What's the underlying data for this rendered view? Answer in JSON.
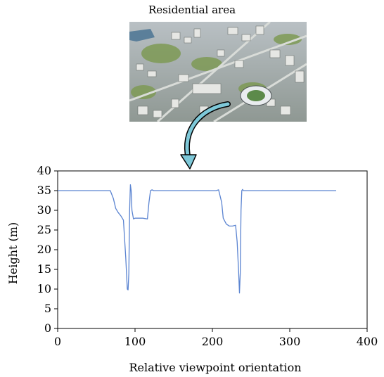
{
  "figure": {
    "title": "Residential area",
    "photo_icon": "aerial-city-photo-icon",
    "arrow_icon": "curved-arrow-icon",
    "arrow_color": "#7ec8d8"
  },
  "chart_data": {
    "type": "line",
    "title": "",
    "xlabel": "Relative viewpoint orientation",
    "ylabel": "Height (m)",
    "xlim": [
      0,
      400
    ],
    "ylim": [
      0,
      40
    ],
    "xticks": [
      0,
      100,
      200,
      300,
      400
    ],
    "yticks": [
      0,
      5,
      10,
      15,
      20,
      25,
      30,
      35,
      40
    ],
    "grid": false,
    "legend": "none",
    "line_color": "#5b84d1",
    "series": [
      {
        "x": [
          0,
          68,
          72,
          75,
          78,
          82,
          85,
          88,
          90,
          91,
          92,
          93,
          94,
          95,
          96,
          98,
          100,
          104,
          110,
          116,
          118,
          120,
          122,
          124,
          126,
          205,
          208,
          212,
          214,
          218,
          222,
          226,
          230,
          232,
          234,
          235,
          236,
          237,
          238,
          239,
          240,
          245,
          360
        ],
        "y": [
          35,
          35,
          33,
          30.5,
          29.5,
          28.5,
          27.5,
          18,
          10,
          9.8,
          14,
          30,
          36.5,
          35,
          30,
          27.8,
          28,
          28,
          28,
          27.8,
          32,
          35,
          35.2,
          35,
          35,
          35,
          35.2,
          32,
          28,
          26.5,
          26,
          26,
          26.2,
          22,
          14,
          9,
          14,
          30,
          35,
          35.3,
          35,
          35,
          35
        ]
      }
    ]
  }
}
